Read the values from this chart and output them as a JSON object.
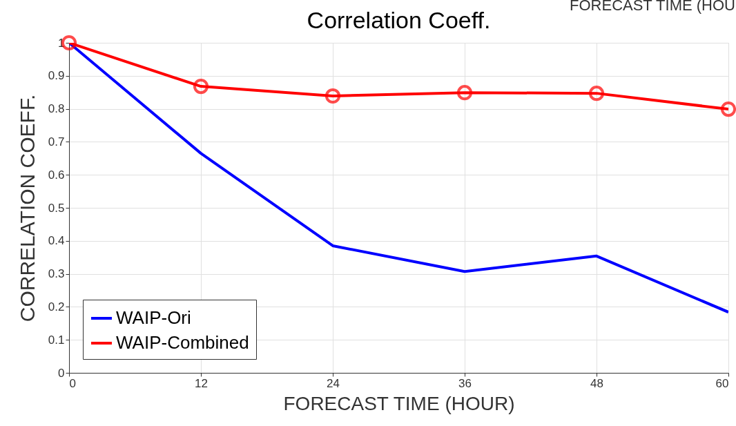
{
  "chart_data": {
    "type": "line",
    "title": "Correlation Coeff.",
    "xlabel": "FORECAST TIME (HOUR)",
    "ylabel": "CORRELATION COEFF.",
    "annotations": [
      "FORECAST TIME (HOU"
    ],
    "x": [
      0,
      12,
      24,
      36,
      48,
      60
    ],
    "series": [
      {
        "name": "WAIP-Ori",
        "color": "#0000ff",
        "marker": "none",
        "values": [
          1.0,
          0.665,
          0.385,
          0.307,
          0.354,
          0.184
        ]
      },
      {
        "name": "WAIP-Combined",
        "color": "#ff0000",
        "marker": "circle",
        "values": [
          1.0,
          0.868,
          0.839,
          0.849,
          0.847,
          0.799
        ]
      }
    ],
    "xlim": [
      0,
      60
    ],
    "xticks": [
      0,
      12,
      24,
      36,
      48,
      60
    ],
    "ylim": [
      0,
      1
    ],
    "yticks": [
      0,
      0.1,
      0.2,
      0.3,
      0.4,
      0.5,
      0.6,
      0.7,
      0.8,
      0.9,
      1
    ],
    "grid": true,
    "legend": "bottom left",
    "line_style": "solid"
  }
}
